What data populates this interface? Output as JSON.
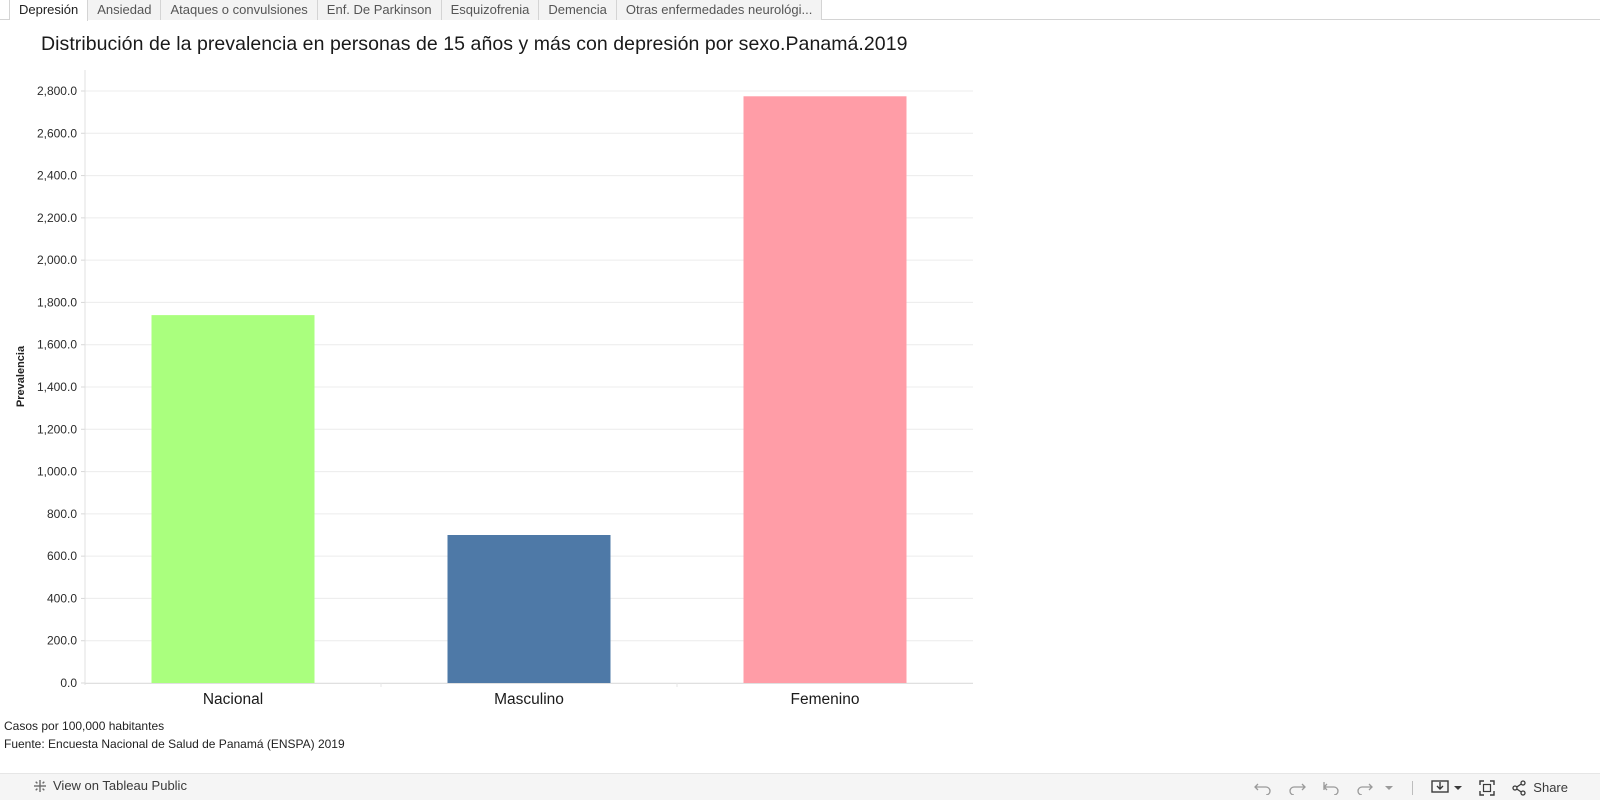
{
  "tabs": [
    {
      "label": "Depresión",
      "active": true
    },
    {
      "label": "Ansiedad",
      "active": false
    },
    {
      "label": "Ataques o convulsiones",
      "active": false
    },
    {
      "label": "Enf. De Parkinson",
      "active": false
    },
    {
      "label": "Esquizofrenia",
      "active": false
    },
    {
      "label": "Demencia",
      "active": false
    },
    {
      "label": "Otras enfermedades neurológi...",
      "active": false
    }
  ],
  "chart_data": {
    "type": "bar",
    "title": "Distribución de la prevalencia en personas de 15 años y más con depresión por sexo.Panamá.2019",
    "xlabel": "",
    "ylabel": "Prevalencia",
    "categories": [
      "Nacional",
      "Masculino",
      "Femenino"
    ],
    "values": [
      1740,
      700,
      2775
    ],
    "colors": [
      "#aaff7e",
      "#4e79a7",
      "#ff9da7"
    ],
    "ylim": [
      0,
      2800
    ],
    "yticks": [
      "0.0",
      "200.0",
      "400.0",
      "600.0",
      "800.0",
      "1,000.0",
      "1,200.0",
      "1,400.0",
      "1,600.0",
      "1,800.0",
      "2,000.0",
      "2,200.0",
      "2,400.0",
      "2,600.0",
      "2,800.0"
    ],
    "grid": true,
    "legend": "none"
  },
  "footnotes": {
    "units": "Casos por 100,000 habitantes",
    "source": "Fuente: Encuesta Nacional de Salud de Panamá (ENSPA) 2019"
  },
  "toolbar": {
    "view_label": "View on Tableau Public",
    "share_label": "Share",
    "icons": [
      "undo-icon",
      "redo-icon",
      "revert-icon",
      "refresh-icon",
      "pause-icon",
      "download-icon",
      "fullscreen-icon",
      "share-icon"
    ]
  }
}
